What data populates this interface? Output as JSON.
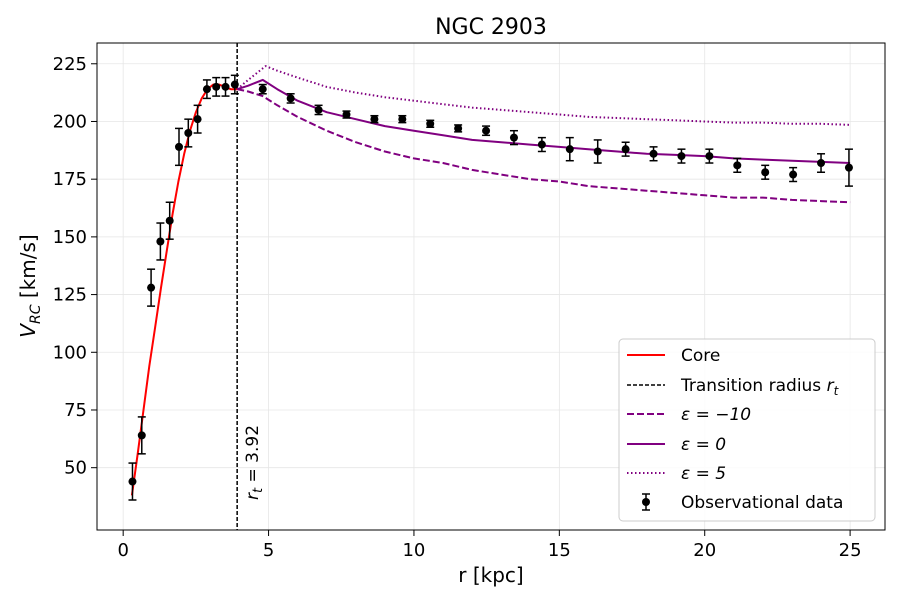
{
  "chart_data": {
    "type": "line",
    "title": "NGC 2903",
    "xlabel": "r [kpc]",
    "ylabel_main": "V",
    "ylabel_sub": "RC",
    "ylabel_unit": " [km/s]",
    "xlim": [
      -0.9,
      26.2
    ],
    "ylim": [
      23,
      234
    ],
    "xticks": [
      0,
      5,
      10,
      15,
      20,
      25
    ],
    "yticks": [
      50,
      75,
      100,
      125,
      150,
      175,
      200,
      225
    ],
    "grid": true,
    "legend_position": "lower-right",
    "transition": {
      "r": 3.92,
      "label_main": "r",
      "label_sub": "t",
      "label_value": " = 3.92"
    },
    "series": [
      {
        "name": "Core",
        "legend_label": "Core",
        "color": "#ff0000",
        "style": "solid",
        "x": [
          0.3,
          0.5,
          0.7,
          0.9,
          1.1,
          1.3,
          1.5,
          1.7,
          1.9,
          2.1,
          2.3,
          2.5,
          2.7,
          2.9,
          3.1,
          3.3,
          3.5,
          3.7,
          3.92
        ],
        "y": [
          38,
          56,
          75,
          94,
          111,
          128,
          144,
          160,
          174,
          186,
          196,
          204,
          210,
          214,
          216,
          216,
          215,
          214,
          214
        ]
      },
      {
        "name": "Transition radius",
        "legend_label": "Transition radius ",
        "legend_sub": "t",
        "legend_main_symbol": "r",
        "color": "#000000",
        "style": "dashed-vertical"
      },
      {
        "name": "epsilon = -10",
        "legend_label": "ε = −10",
        "color": "#800080",
        "style": "dashed",
        "x": [
          3.92,
          4.3,
          4.8,
          5.3,
          6,
          7,
          8,
          9,
          10,
          11,
          12,
          13,
          14,
          15,
          16,
          17,
          18,
          19,
          20,
          21,
          22,
          23,
          24,
          25
        ],
        "y": [
          214,
          213,
          211,
          207,
          202,
          196,
          191,
          187,
          184,
          182,
          179,
          177,
          175,
          174,
          172,
          171,
          170,
          169,
          168,
          167,
          167,
          166,
          165.5,
          165
        ]
      },
      {
        "name": "epsilon = 0",
        "legend_label": "ε = 0",
        "color": "#800080",
        "style": "solid",
        "x": [
          3.92,
          4.3,
          4.8,
          5.3,
          6,
          7,
          8,
          9,
          10,
          11,
          12,
          13,
          14,
          15,
          16,
          17,
          18,
          19,
          20,
          21,
          22,
          23,
          24,
          25
        ],
        "y": [
          214,
          215.5,
          218,
          214,
          209,
          204,
          201,
          198,
          196,
          194,
          192,
          191,
          190,
          189,
          188,
          187,
          186,
          185.5,
          185,
          184,
          183.5,
          183,
          182.5,
          182
        ]
      },
      {
        "name": "epsilon = 5",
        "legend_label": "ε = 5",
        "color": "#800080",
        "style": "dotted",
        "x": [
          3.92,
          4.3,
          4.9,
          5.3,
          6,
          7,
          8,
          9,
          10,
          11,
          12,
          13,
          14,
          15,
          16,
          17,
          18,
          19,
          20,
          21,
          22,
          23,
          24,
          25
        ],
        "y": [
          214,
          218,
          224,
          222,
          219,
          215,
          212.5,
          210.5,
          209,
          207.5,
          206,
          205,
          204,
          203,
          202,
          201.5,
          201,
          200.5,
          200,
          199.5,
          199.5,
          199,
          199,
          198.5
        ]
      }
    ],
    "observational_data": {
      "name": "Observational data",
      "legend_label": "Observational data",
      "color": "#000000",
      "points": [
        {
          "x": 0.32,
          "y": 44,
          "err": 8
        },
        {
          "x": 0.64,
          "y": 64,
          "err": 8
        },
        {
          "x": 0.96,
          "y": 128,
          "err": 8
        },
        {
          "x": 1.28,
          "y": 148,
          "err": 8
        },
        {
          "x": 1.6,
          "y": 157,
          "err": 8
        },
        {
          "x": 1.92,
          "y": 189,
          "err": 8
        },
        {
          "x": 2.24,
          "y": 195,
          "err": 6
        },
        {
          "x": 2.56,
          "y": 201,
          "err": 6
        },
        {
          "x": 2.88,
          "y": 214,
          "err": 4
        },
        {
          "x": 3.2,
          "y": 215,
          "err": 4
        },
        {
          "x": 3.52,
          "y": 215,
          "err": 4
        },
        {
          "x": 3.84,
          "y": 216,
          "err": 4
        },
        {
          "x": 4.8,
          "y": 214,
          "err": 2
        },
        {
          "x": 5.76,
          "y": 210,
          "err": 2
        },
        {
          "x": 6.72,
          "y": 205,
          "err": 2
        },
        {
          "x": 7.68,
          "y": 203,
          "err": 1.5
        },
        {
          "x": 8.64,
          "y": 201,
          "err": 1.5
        },
        {
          "x": 9.6,
          "y": 201,
          "err": 1.5
        },
        {
          "x": 10.56,
          "y": 199,
          "err": 1.5
        },
        {
          "x": 11.52,
          "y": 197,
          "err": 1.5
        },
        {
          "x": 12.48,
          "y": 196,
          "err": 2
        },
        {
          "x": 13.44,
          "y": 193,
          "err": 3
        },
        {
          "x": 14.4,
          "y": 190,
          "err": 3
        },
        {
          "x": 15.36,
          "y": 188,
          "err": 5
        },
        {
          "x": 16.32,
          "y": 187,
          "err": 5
        },
        {
          "x": 17.28,
          "y": 188,
          "err": 3
        },
        {
          "x": 18.24,
          "y": 186,
          "err": 3
        },
        {
          "x": 19.2,
          "y": 185,
          "err": 3
        },
        {
          "x": 20.16,
          "y": 185,
          "err": 3
        },
        {
          "x": 21.12,
          "y": 181,
          "err": 3
        },
        {
          "x": 22.08,
          "y": 178,
          "err": 3
        },
        {
          "x": 23.04,
          "y": 177,
          "err": 3
        },
        {
          "x": 24.0,
          "y": 182,
          "err": 4
        },
        {
          "x": 24.96,
          "y": 180,
          "err": 8
        }
      ]
    }
  }
}
